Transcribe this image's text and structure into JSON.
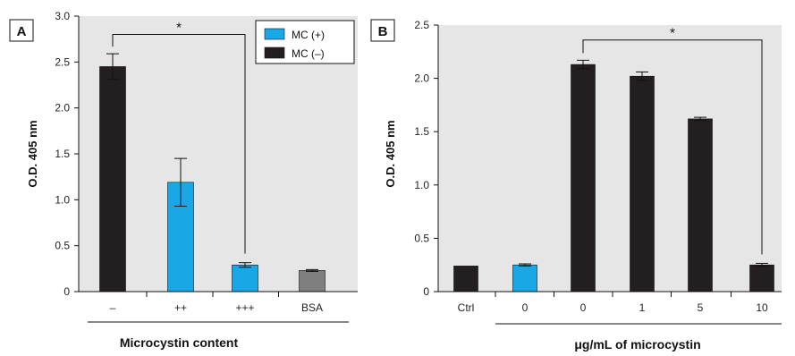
{
  "colors": {
    "plot_background": "#e6e6e6",
    "mc_positive": "#1aa7e6",
    "mc_negative": "#231f20",
    "bsa": "#7f7f7f"
  },
  "chart_data": [
    {
      "type": "bar",
      "panel_label": "A",
      "ylabel": "O.D. 405 nm",
      "xlabel": "Microcystin content",
      "ylim": [
        0,
        3.0
      ],
      "yticks": [
        "0",
        "0.5",
        "1.0",
        "1.5",
        "2.0",
        "2.5",
        "3.0"
      ],
      "categories": [
        "–",
        "++",
        "+++",
        "BSA"
      ],
      "values": [
        2.45,
        1.19,
        0.29,
        0.23
      ],
      "errors": [
        0.14,
        0.26,
        0.025,
        0.01
      ],
      "bar_colors": [
        "mc_negative",
        "mc_positive",
        "mc_positive",
        "bsa"
      ],
      "legend": {
        "placement": "top-right",
        "entries": [
          {
            "label": "MC (+)",
            "color": "mc_positive"
          },
          {
            "label": "MC (–)",
            "color": "mc_negative"
          }
        ]
      },
      "significance": {
        "from": 0,
        "to": 2,
        "level": 2.8,
        "label": "*"
      },
      "grid": false
    },
    {
      "type": "bar",
      "panel_label": "B",
      "ylabel": "O.D. 405 nm",
      "xlabel": "μg/mL of microcystin",
      "ylim": [
        0,
        2.5
      ],
      "yticks": [
        "0",
        "0.5",
        "1.0",
        "1.5",
        "2.0",
        "2.5"
      ],
      "categories": [
        "Ctrl",
        "0",
        "0",
        "1",
        "5",
        "10"
      ],
      "values": [
        0.24,
        0.25,
        2.13,
        2.02,
        1.62,
        0.25
      ],
      "errors": [
        0.0,
        0.01,
        0.04,
        0.04,
        0.015,
        0.015
      ],
      "bar_colors": [
        "mc_negative",
        "mc_positive",
        "mc_negative",
        "mc_negative",
        "mc_negative",
        "mc_negative"
      ],
      "significance": {
        "from": 2,
        "to": 5,
        "level": 2.36,
        "label": "*"
      },
      "grid": false
    }
  ]
}
